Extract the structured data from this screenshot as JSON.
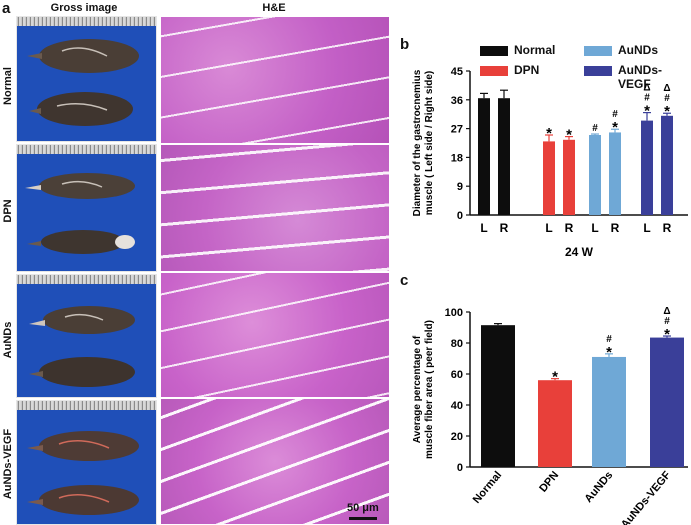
{
  "panel_a": {
    "letter": "a",
    "col_gross": "Gross image",
    "col_he": "H&E",
    "rows": [
      "Normal",
      "DPN",
      "AuNDs",
      "AuNDs-VEGF"
    ],
    "scale_bar": "50 μm"
  },
  "legend": {
    "items": [
      {
        "name": "Normal",
        "color": "#0d0d0d"
      },
      {
        "name": "AuNDs",
        "color": "#6fa8d6"
      },
      {
        "name": "DPN",
        "color": "#e8403a"
      },
      {
        "name": "AuNDs-VEGF",
        "color": "#3a3f99"
      }
    ]
  },
  "chart_data": [
    {
      "letter": "b",
      "type": "bar",
      "title": "",
      "ylabel_line1": "Diameter of the gastrocnemius",
      "ylabel_line2": "muscle ( Left side / Right side)",
      "xlabel": "24 W",
      "ylim": [
        0,
        45
      ],
      "yticks": [
        "0",
        "9",
        "18",
        "27",
        "36",
        "45"
      ],
      "categories": [
        "L",
        "R",
        "L",
        "R",
        "L",
        "R",
        "L",
        "R"
      ],
      "groups": [
        "Normal",
        "DPN",
        "AuNDs",
        "AuNDs-VEGF"
      ],
      "colors": [
        "#0d0d0d",
        "#0d0d0d",
        "#e8403a",
        "#e8403a",
        "#6fa8d6",
        "#6fa8d6",
        "#3a3f99",
        "#3a3f99"
      ],
      "values": [
        36.5,
        36.5,
        23.0,
        23.5,
        25.0,
        25.8,
        29.5,
        31.0
      ],
      "errors": [
        1.5,
        2.5,
        2.0,
        1.0,
        0.3,
        1.0,
        2.5,
        0.8
      ],
      "annotations": [
        [],
        [],
        [
          "*"
        ],
        [
          "*"
        ],
        [
          "#"
        ],
        [
          "*",
          "#"
        ],
        [
          "*",
          "#",
          "Δ"
        ],
        [
          "*",
          "#",
          "Δ"
        ]
      ]
    },
    {
      "letter": "c",
      "type": "bar",
      "title": "",
      "ylabel_line1": "Average percentage of",
      "ylabel_line2": "muscle fiber area ( peer field)",
      "xlabel": "",
      "ylim": [
        0,
        100
      ],
      "yticks": [
        "0",
        "20",
        "40",
        "60",
        "80",
        "100"
      ],
      "categories": [
        "Normal",
        "DPN",
        "AuNDs",
        "AuNDs-VEGF"
      ],
      "colors": [
        "#0d0d0d",
        "#e8403a",
        "#6fa8d6",
        "#3a3f99"
      ],
      "values": [
        91.5,
        56.0,
        71.0,
        83.5
      ],
      "errors": [
        1.0,
        1.0,
        2.0,
        1.0
      ],
      "annotations": [
        [],
        [
          "*"
        ],
        [
          "*",
          "#"
        ],
        [
          "*",
          "#",
          "Δ"
        ]
      ]
    }
  ]
}
